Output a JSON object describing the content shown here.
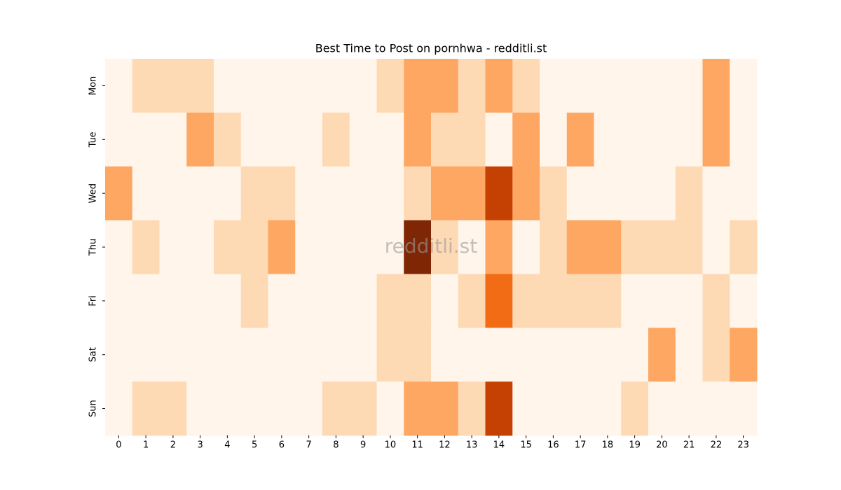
{
  "chart_data": {
    "type": "heatmap",
    "title": "Best Time to Post on pornhwa - redditli.st",
    "watermark": "redditli.st",
    "x": [
      "0",
      "1",
      "2",
      "3",
      "4",
      "5",
      "6",
      "7",
      "8",
      "9",
      "10",
      "11",
      "12",
      "13",
      "14",
      "15",
      "16",
      "17",
      "18",
      "19",
      "20",
      "21",
      "22",
      "23"
    ],
    "y": [
      "Mon",
      "Tue",
      "Wed",
      "Thu",
      "Fri",
      "Sat",
      "Sun"
    ],
    "values": [
      [
        0,
        1,
        1,
        1,
        0,
        0,
        0,
        0,
        0,
        0,
        1,
        2,
        2,
        1,
        2,
        1,
        0,
        0,
        0,
        0,
        0,
        0,
        2,
        0
      ],
      [
        0,
        0,
        0,
        2,
        1,
        0,
        0,
        0,
        1,
        0,
        0,
        2,
        1,
        1,
        0,
        2,
        0,
        2,
        0,
        0,
        0,
        0,
        2,
        0
      ],
      [
        2,
        0,
        0,
        0,
        0,
        1,
        1,
        0,
        0,
        0,
        0,
        1,
        2,
        2,
        4,
        2,
        1,
        0,
        0,
        0,
        0,
        1,
        0,
        0
      ],
      [
        0,
        1,
        0,
        0,
        1,
        1,
        2,
        0,
        0,
        0,
        0,
        5,
        1,
        0,
        2,
        0,
        1,
        2,
        2,
        1,
        1,
        1,
        0,
        1
      ],
      [
        0,
        0,
        0,
        0,
        0,
        1,
        0,
        0,
        0,
        0,
        1,
        1,
        0,
        1,
        3,
        1,
        1,
        1,
        1,
        0,
        0,
        0,
        1,
        0
      ],
      [
        0,
        0,
        0,
        0,
        0,
        0,
        0,
        0,
        0,
        0,
        1,
        1,
        0,
        0,
        0,
        0,
        0,
        0,
        0,
        0,
        2,
        0,
        1,
        2
      ],
      [
        0,
        1,
        1,
        0,
        0,
        0,
        0,
        0,
        1,
        1,
        0,
        2,
        2,
        1,
        4,
        0,
        0,
        0,
        0,
        1,
        0,
        0,
        0,
        0
      ]
    ],
    "colorscale": [
      "#fff5eb",
      "#fdd9b4",
      "#fda762",
      "#f16c14",
      "#c44103",
      "#7f2704"
    ]
  }
}
